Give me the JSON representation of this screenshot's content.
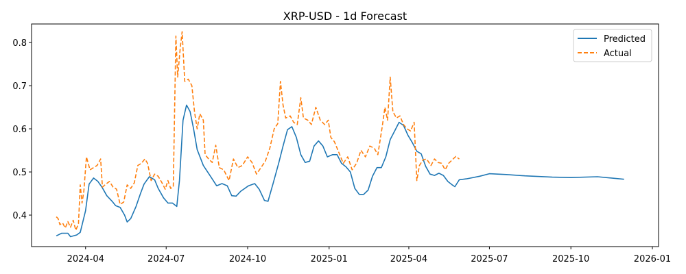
{
  "chart_data": {
    "type": "line",
    "title": "XRP-USD - 1d Forecast",
    "xlabel": "",
    "ylabel": "",
    "x_axis": {
      "type": "date",
      "range": [
        "2024-01-31",
        "2026-01-08"
      ],
      "ticks": [
        {
          "date": "2024-04-01",
          "label": "2024-04"
        },
        {
          "date": "2024-07-01",
          "label": "2024-07"
        },
        {
          "date": "2024-10-01",
          "label": "2024-10"
        },
        {
          "date": "2025-01-01",
          "label": "2025-01"
        },
        {
          "date": "2025-04-01",
          "label": "2025-04"
        },
        {
          "date": "2025-07-01",
          "label": "2025-07"
        },
        {
          "date": "2025-10-01",
          "label": "2025-10"
        },
        {
          "date": "2026-01-01",
          "label": "2026-01"
        }
      ]
    },
    "y_axis": {
      "range": [
        0.327,
        0.843
      ],
      "ticks": [
        {
          "value": 0.4,
          "label": "0.4"
        },
        {
          "value": 0.5,
          "label": "0.5"
        },
        {
          "value": 0.6,
          "label": "0.6"
        },
        {
          "value": 0.7,
          "label": "0.7"
        },
        {
          "value": 0.8,
          "label": "0.8"
        }
      ]
    },
    "grid": false,
    "legend": {
      "position": "top-right"
    },
    "series": [
      {
        "name": "Predicted",
        "color": "#1f77b4",
        "style": "solid",
        "points": [
          [
            "2024-02-28",
            0.352
          ],
          [
            "2024-03-05",
            0.358
          ],
          [
            "2024-03-12",
            0.358
          ],
          [
            "2024-03-15",
            0.35
          ],
          [
            "2024-03-22",
            0.354
          ],
          [
            "2024-03-26",
            0.36
          ],
          [
            "2024-04-01",
            0.41
          ],
          [
            "2024-04-05",
            0.472
          ],
          [
            "2024-04-10",
            0.486
          ],
          [
            "2024-04-15",
            0.478
          ],
          [
            "2024-04-20",
            0.463
          ],
          [
            "2024-04-25",
            0.445
          ],
          [
            "2024-05-01",
            0.432
          ],
          [
            "2024-05-05",
            0.422
          ],
          [
            "2024-05-10",
            0.418
          ],
          [
            "2024-05-15",
            0.4
          ],
          [
            "2024-05-18",
            0.384
          ],
          [
            "2024-05-22",
            0.392
          ],
          [
            "2024-05-28",
            0.42
          ],
          [
            "2024-06-02",
            0.45
          ],
          [
            "2024-06-06",
            0.472
          ],
          [
            "2024-06-12",
            0.489
          ],
          [
            "2024-06-18",
            0.482
          ],
          [
            "2024-06-22",
            0.462
          ],
          [
            "2024-06-28",
            0.44
          ],
          [
            "2024-07-03",
            0.428
          ],
          [
            "2024-07-08",
            0.428
          ],
          [
            "2024-07-13",
            0.42
          ],
          [
            "2024-07-16",
            0.48
          ],
          [
            "2024-07-20",
            0.62
          ],
          [
            "2024-07-24",
            0.655
          ],
          [
            "2024-07-28",
            0.64
          ],
          [
            "2024-08-01",
            0.6
          ],
          [
            "2024-08-05",
            0.552
          ],
          [
            "2024-08-12",
            0.515
          ],
          [
            "2024-08-20",
            0.49
          ],
          [
            "2024-08-27",
            0.468
          ],
          [
            "2024-09-02",
            0.473
          ],
          [
            "2024-09-08",
            0.468
          ],
          [
            "2024-09-13",
            0.445
          ],
          [
            "2024-09-18",
            0.444
          ],
          [
            "2024-09-23",
            0.455
          ],
          [
            "2024-10-02",
            0.468
          ],
          [
            "2024-10-09",
            0.473
          ],
          [
            "2024-10-14",
            0.46
          ],
          [
            "2024-10-20",
            0.434
          ],
          [
            "2024-10-24",
            0.432
          ],
          [
            "2024-10-30",
            0.475
          ],
          [
            "2024-11-05",
            0.52
          ],
          [
            "2024-11-10",
            0.56
          ],
          [
            "2024-11-15",
            0.598
          ],
          [
            "2024-11-20",
            0.605
          ],
          [
            "2024-11-25",
            0.58
          ],
          [
            "2024-11-30",
            0.54
          ],
          [
            "2024-12-05",
            0.522
          ],
          [
            "2024-12-10",
            0.525
          ],
          [
            "2024-12-15",
            0.56
          ],
          [
            "2024-12-20",
            0.572
          ],
          [
            "2024-12-25",
            0.56
          ],
          [
            "2024-12-30",
            0.535
          ],
          [
            "2025-01-05",
            0.54
          ],
          [
            "2025-01-10",
            0.54
          ],
          [
            "2025-01-15",
            0.52
          ],
          [
            "2025-01-20",
            0.512
          ],
          [
            "2025-01-25",
            0.5
          ],
          [
            "2025-01-30",
            0.462
          ],
          [
            "2025-02-04",
            0.448
          ],
          [
            "2025-02-09",
            0.448
          ],
          [
            "2025-02-14",
            0.458
          ],
          [
            "2025-02-19",
            0.49
          ],
          [
            "2025-02-24",
            0.51
          ],
          [
            "2025-03-01",
            0.51
          ],
          [
            "2025-03-06",
            0.535
          ],
          [
            "2025-03-11",
            0.575
          ],
          [
            "2025-03-16",
            0.595
          ],
          [
            "2025-03-21",
            0.615
          ],
          [
            "2025-03-26",
            0.608
          ],
          [
            "2025-03-31",
            0.585
          ],
          [
            "2025-04-05",
            0.568
          ],
          [
            "2025-04-10",
            0.548
          ],
          [
            "2025-04-15",
            0.542
          ],
          [
            "2025-04-20",
            0.513
          ],
          [
            "2025-04-25",
            0.495
          ],
          [
            "2025-04-30",
            0.492
          ],
          [
            "2025-05-05",
            0.497
          ],
          [
            "2025-05-10",
            0.492
          ],
          [
            "2025-05-15",
            0.478
          ],
          [
            "2025-05-20",
            0.47
          ],
          [
            "2025-05-23",
            0.466
          ],
          [
            "2025-05-28",
            0.482
          ],
          [
            "2025-06-05",
            0.484
          ],
          [
            "2025-06-20",
            0.49
          ],
          [
            "2025-07-01",
            0.496
          ],
          [
            "2025-07-20",
            0.494
          ],
          [
            "2025-08-10",
            0.491
          ],
          [
            "2025-09-10",
            0.488
          ],
          [
            "2025-10-01",
            0.487
          ],
          [
            "2025-10-31",
            0.489
          ],
          [
            "2025-11-30",
            0.483
          ]
        ]
      },
      {
        "name": "Actual",
        "color": "#ff7f0e",
        "style": "dashed",
        "points": [
          [
            "2024-02-28",
            0.396
          ],
          [
            "2024-03-01",
            0.392
          ],
          [
            "2024-03-03",
            0.378
          ],
          [
            "2024-03-06",
            0.382
          ],
          [
            "2024-03-09",
            0.37
          ],
          [
            "2024-03-12",
            0.385
          ],
          [
            "2024-03-15",
            0.372
          ],
          [
            "2024-03-18",
            0.388
          ],
          [
            "2024-03-21",
            0.365
          ],
          [
            "2024-03-24",
            0.38
          ],
          [
            "2024-03-26",
            0.47
          ],
          [
            "2024-03-28",
            0.428
          ],
          [
            "2024-03-30",
            0.455
          ],
          [
            "2024-04-02",
            0.535
          ],
          [
            "2024-04-04",
            0.52
          ],
          [
            "2024-04-06",
            0.505
          ],
          [
            "2024-04-10",
            0.51
          ],
          [
            "2024-04-14",
            0.515
          ],
          [
            "2024-04-18",
            0.53
          ],
          [
            "2024-04-20",
            0.465
          ],
          [
            "2024-04-24",
            0.472
          ],
          [
            "2024-04-28",
            0.478
          ],
          [
            "2024-05-02",
            0.465
          ],
          [
            "2024-05-06",
            0.46
          ],
          [
            "2024-05-10",
            0.425
          ],
          [
            "2024-05-14",
            0.43
          ],
          [
            "2024-05-18",
            0.47
          ],
          [
            "2024-05-22",
            0.462
          ],
          [
            "2024-05-26",
            0.475
          ],
          [
            "2024-05-30",
            0.515
          ],
          [
            "2024-06-03",
            0.52
          ],
          [
            "2024-06-07",
            0.53
          ],
          [
            "2024-06-10",
            0.52
          ],
          [
            "2024-06-14",
            0.48
          ],
          [
            "2024-06-18",
            0.495
          ],
          [
            "2024-06-22",
            0.49
          ],
          [
            "2024-06-26",
            0.476
          ],
          [
            "2024-06-30",
            0.46
          ],
          [
            "2024-07-03",
            0.48
          ],
          [
            "2024-07-06",
            0.462
          ],
          [
            "2024-07-09",
            0.465
          ],
          [
            "2024-07-12",
            0.815
          ],
          [
            "2024-07-14",
            0.72
          ],
          [
            "2024-07-17",
            0.79
          ],
          [
            "2024-07-19",
            0.825
          ],
          [
            "2024-07-22",
            0.71
          ],
          [
            "2024-07-26",
            0.715
          ],
          [
            "2024-07-30",
            0.7
          ],
          [
            "2024-08-02",
            0.64
          ],
          [
            "2024-08-05",
            0.6
          ],
          [
            "2024-08-08",
            0.635
          ],
          [
            "2024-08-12",
            0.62
          ],
          [
            "2024-08-14",
            0.54
          ],
          [
            "2024-08-18",
            0.53
          ],
          [
            "2024-08-22",
            0.522
          ],
          [
            "2024-08-26",
            0.562
          ],
          [
            "2024-08-30",
            0.51
          ],
          [
            "2024-09-04",
            0.505
          ],
          [
            "2024-09-10",
            0.48
          ],
          [
            "2024-09-15",
            0.53
          ],
          [
            "2024-09-20",
            0.51
          ],
          [
            "2024-09-25",
            0.515
          ],
          [
            "2024-10-01",
            0.535
          ],
          [
            "2024-10-06",
            0.522
          ],
          [
            "2024-10-11",
            0.495
          ],
          [
            "2024-10-16",
            0.51
          ],
          [
            "2024-10-21",
            0.525
          ],
          [
            "2024-10-26",
            0.555
          ],
          [
            "2024-10-31",
            0.6
          ],
          [
            "2024-11-04",
            0.612
          ],
          [
            "2024-11-07",
            0.71
          ],
          [
            "2024-11-10",
            0.655
          ],
          [
            "2024-11-13",
            0.625
          ],
          [
            "2024-11-18",
            0.63
          ],
          [
            "2024-11-22",
            0.615
          ],
          [
            "2024-11-26",
            0.61
          ],
          [
            "2024-11-30",
            0.672
          ],
          [
            "2024-12-03",
            0.625
          ],
          [
            "2024-12-08",
            0.62
          ],
          [
            "2024-12-12",
            0.61
          ],
          [
            "2024-12-17",
            0.65
          ],
          [
            "2024-12-22",
            0.62
          ],
          [
            "2024-12-27",
            0.61
          ],
          [
            "2024-12-31",
            0.62
          ],
          [
            "2025-01-03",
            0.58
          ],
          [
            "2025-01-07",
            0.57
          ],
          [
            "2025-01-12",
            0.545
          ],
          [
            "2025-01-17",
            0.52
          ],
          [
            "2025-01-22",
            0.535
          ],
          [
            "2025-01-27",
            0.505
          ],
          [
            "2025-02-01",
            0.52
          ],
          [
            "2025-02-06",
            0.55
          ],
          [
            "2025-02-11",
            0.535
          ],
          [
            "2025-02-16",
            0.56
          ],
          [
            "2025-02-21",
            0.555
          ],
          [
            "2025-02-25",
            0.54
          ],
          [
            "2025-03-02",
            0.605
          ],
          [
            "2025-03-05",
            0.65
          ],
          [
            "2025-03-08",
            0.62
          ],
          [
            "2025-03-11",
            0.72
          ],
          [
            "2025-03-14",
            0.64
          ],
          [
            "2025-03-18",
            0.625
          ],
          [
            "2025-03-22",
            0.63
          ],
          [
            "2025-03-26",
            0.61
          ],
          [
            "2025-03-30",
            0.6
          ],
          [
            "2025-04-03",
            0.595
          ],
          [
            "2025-04-07",
            0.615
          ],
          [
            "2025-04-10",
            0.48
          ],
          [
            "2025-04-13",
            0.515
          ],
          [
            "2025-04-17",
            0.528
          ],
          [
            "2025-04-21",
            0.53
          ],
          [
            "2025-04-26",
            0.515
          ],
          [
            "2025-04-30",
            0.53
          ],
          [
            "2025-05-04",
            0.522
          ],
          [
            "2025-05-08",
            0.52
          ],
          [
            "2025-05-12",
            0.505
          ],
          [
            "2025-05-16",
            0.52
          ],
          [
            "2025-05-20",
            0.528
          ],
          [
            "2025-05-24",
            0.536
          ],
          [
            "2025-05-28",
            0.53
          ]
        ]
      }
    ]
  }
}
